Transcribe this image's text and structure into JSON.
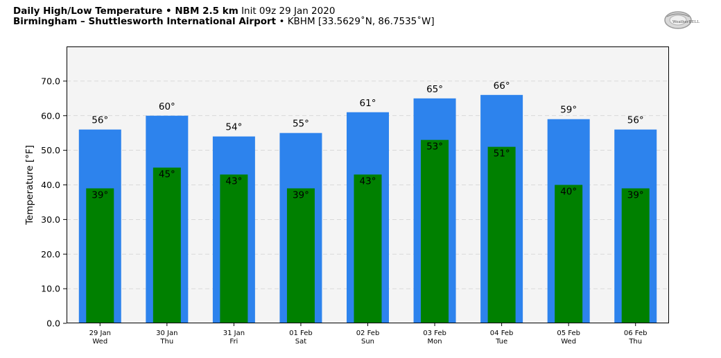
{
  "header": {
    "title_bold": "Daily High/Low Temperature • NBM 2.5 km",
    "init": "Init 09z 29 Jan 2020",
    "location_bold": "Birmingham – Shuttlesworth International Airport",
    "station": "• KBHM [33.5629˚N, 86.7535˚W]"
  },
  "logo": {
    "icon": "weatherbell-logo",
    "text": "WeatherBELL"
  },
  "chart_data": {
    "type": "bar",
    "title": "Daily High/Low Temperature • NBM 2.5 km",
    "ylabel": "Temperature [°F]",
    "xlabel": "",
    "ylim": [
      0,
      80
    ],
    "yticks": [
      0,
      10,
      20,
      30,
      40,
      50,
      60,
      70
    ],
    "ytick_labels": [
      "0.0",
      "10.0",
      "20.0",
      "30.0",
      "40.0",
      "50.0",
      "60.0",
      "70.0"
    ],
    "grid": true,
    "categories": [
      [
        "29 Jan",
        "Wed"
      ],
      [
        "30 Jan",
        "Thu"
      ],
      [
        "31 Jan",
        "Fri"
      ],
      [
        "01 Feb",
        "Sat"
      ],
      [
        "02 Feb",
        "Sun"
      ],
      [
        "03 Feb",
        "Mon"
      ],
      [
        "04 Feb",
        "Tue"
      ],
      [
        "05 Feb",
        "Wed"
      ],
      [
        "06 Feb",
        "Thu"
      ]
    ],
    "series": [
      {
        "values": [
          56,
          60,
          54,
          55,
          61,
          65,
          66,
          59,
          56
        ],
        "color": "#2d83ed"
      },
      {
        "values": [
          39,
          45,
          43,
          39,
          43,
          53,
          51,
          40,
          39
        ],
        "color": "#008000"
      }
    ],
    "label_suffix": "°"
  }
}
